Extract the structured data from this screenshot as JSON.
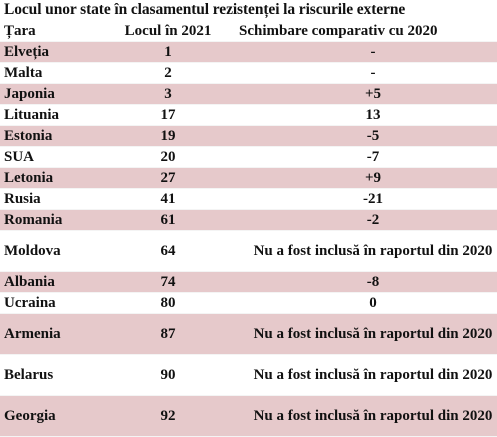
{
  "title": "Locul unor state în clasamentul  rezistenței la riscurile externe",
  "table": {
    "headers": [
      "Țara",
      "Locul în 2021",
      "Schimbare comparativ cu 2020"
    ],
    "rows": [
      {
        "country": "Elveția",
        "rank": "1",
        "change": "-"
      },
      {
        "country": "Malta",
        "rank": "2",
        "change": "-"
      },
      {
        "country": "Japonia",
        "rank": "3",
        "change": "+5"
      },
      {
        "country": "Lituania",
        "rank": "17",
        "change": "13"
      },
      {
        "country": "Estonia",
        "rank": "19",
        "change": "-5"
      },
      {
        "country": "SUA",
        "rank": "20",
        "change": "-7"
      },
      {
        "country": "Letonia",
        "rank": "27",
        "change": "+9"
      },
      {
        "country": "Rusia",
        "rank": "41",
        "change": "-21"
      },
      {
        "country": "Romania",
        "rank": "61",
        "change": "-2"
      },
      {
        "country": "Moldova",
        "rank": "64",
        "change": "Nu a fost inclusă în raportul din 2020"
      },
      {
        "country": "Albania",
        "rank": "74",
        "change": "-8"
      },
      {
        "country": "Ucraina",
        "rank": "80",
        "change": "0"
      },
      {
        "country": "Armenia",
        "rank": "87",
        "change": "Nu a fost inclusă în raportul din 2020"
      },
      {
        "country": "Belarus",
        "rank": "90",
        "change": "Nu a fost inclusă în raportul din 2020"
      },
      {
        "country": "Georgia",
        "rank": "92",
        "change": "Nu a fost inclusă în raportul din 2020"
      }
    ]
  },
  "colors": {
    "row_pink": "#e6c9cb",
    "row_white": "#ffffff",
    "text": "#111111"
  }
}
